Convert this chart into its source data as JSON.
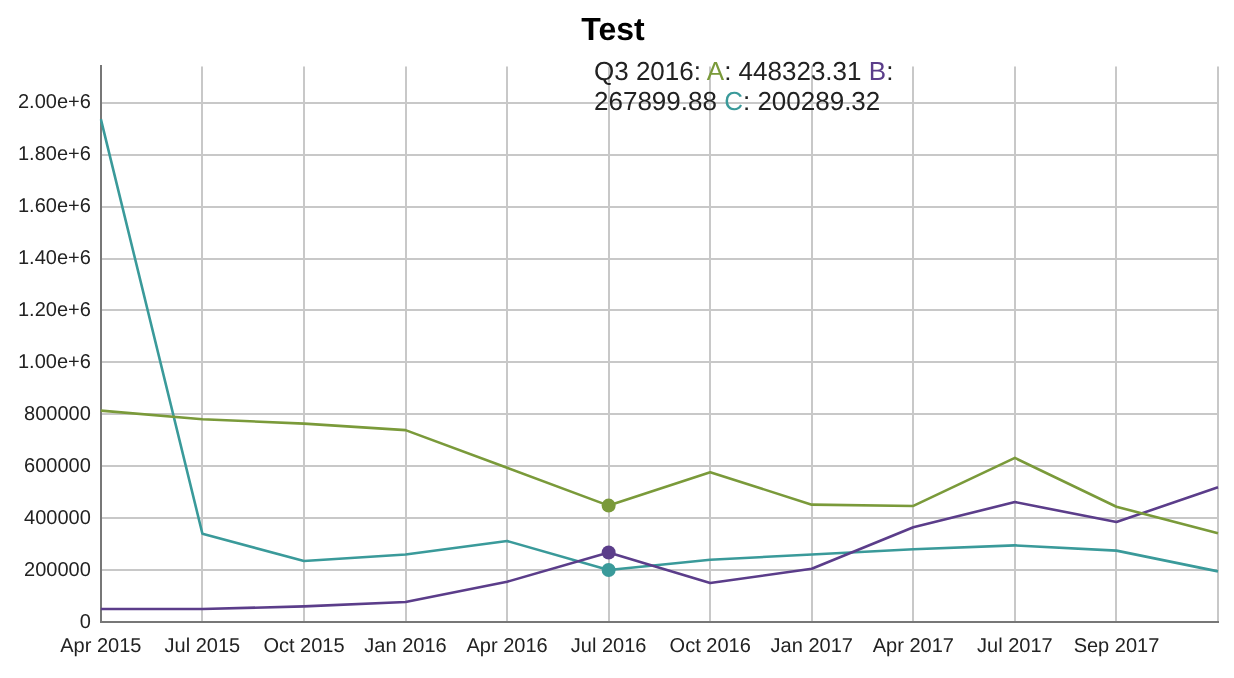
{
  "chart_data": {
    "type": "line",
    "title": "Test",
    "categories": [
      "Apr 2015",
      "Jul 2015",
      "Oct 2015",
      "Jan 2016",
      "Apr 2016",
      "Jul 2016",
      "Oct 2016",
      "Jan 2017",
      "Apr 2017",
      "Jul 2017",
      "Sep 2017",
      null
    ],
    "series": [
      {
        "name": "A",
        "color": "#7a9a3a",
        "values": [
          814000,
          781000,
          764000,
          739000,
          594000,
          448323.31,
          577000,
          452000,
          447000,
          632000,
          444000,
          342000
        ]
      },
      {
        "name": "B",
        "color": "#5b3d8a",
        "values": [
          50000,
          50000,
          60000,
          77000,
          155000,
          267899.88,
          150000,
          205000,
          365000,
          462000,
          385000,
          519000
        ]
      },
      {
        "name": "C",
        "color": "#3a9a9a",
        "values": [
          1937000,
          340000,
          235000,
          260000,
          312000,
          200289.32,
          240000,
          260000,
          280000,
          295000,
          275000,
          195000
        ]
      }
    ],
    "annotations": [
      "Q3 2016:",
      ": 448323.31",
      ": 267899.88",
      ": 200289.32"
    ],
    "ylim": [
      0,
      2140000
    ],
    "yticks": [
      0,
      200000,
      400000,
      600000,
      800000,
      {
        "value": 1000000,
        "label": "1.00e+6"
      },
      {
        "value": 1200000,
        "label": "1.20e+6"
      },
      {
        "value": 1400000,
        "label": "1.40e+6"
      },
      {
        "value": 1600000,
        "label": "1.60e+6"
      },
      {
        "value": 1800000,
        "label": "1.80e+6"
      },
      {
        "value": 2000000,
        "label": "2.00e+6"
      }
    ],
    "grid": true,
    "legend": "top right",
    "marker": "none",
    "line_style": "solid"
  }
}
